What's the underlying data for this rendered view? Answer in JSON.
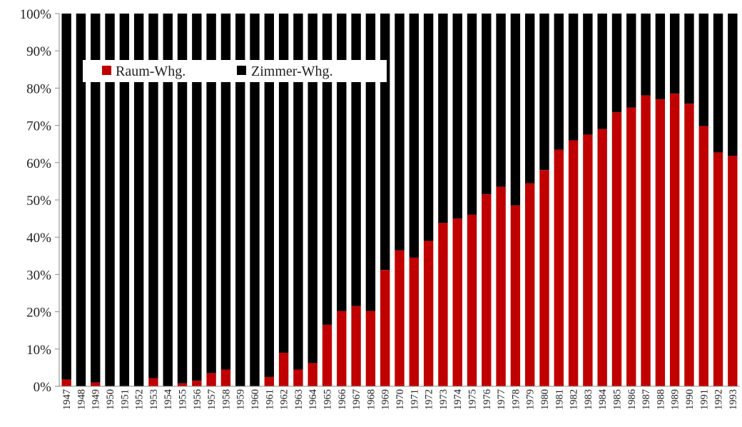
{
  "chart_data": {
    "type": "bar",
    "stacked": true,
    "percent_stacked": true,
    "categories": [
      "1947",
      "1948",
      "1949",
      "1950",
      "1951",
      "1952",
      "1953",
      "1954",
      "1955",
      "1956",
      "1957",
      "1958",
      "1959",
      "1960",
      "1961",
      "1962",
      "1963",
      "1964",
      "1965",
      "1966",
      "1967",
      "1968",
      "1969",
      "1970",
      "1971",
      "1972",
      "1973",
      "1974",
      "1975",
      "1976",
      "1977",
      "1978",
      "1979",
      "1980",
      "1981",
      "1982",
      "1983",
      "1984",
      "1985",
      "1986",
      "1987",
      "1988",
      "1989",
      "1990",
      "1991",
      "1992",
      "1993"
    ],
    "series": [
      {
        "name": "Raum-Whg.",
        "color": "#c00000",
        "values": [
          1.8,
          0,
          1,
          0,
          0,
          0,
          2.2,
          0,
          0.8,
          1.5,
          3.5,
          4.5,
          0,
          0,
          2.5,
          9,
          4.5,
          6.2,
          16.5,
          20.2,
          21.5,
          20.2,
          31.2,
          36.5,
          34.5,
          39,
          43.8,
          45,
          46,
          51.5,
          53.5,
          48.5,
          54.5,
          58,
          63.5,
          66,
          67.5,
          69,
          73.5,
          74.8,
          78,
          77,
          78.5,
          75.8,
          69.8,
          62.7,
          61.8
        ]
      },
      {
        "name": "Zimmer-Whg.",
        "color": "#000000",
        "values": [
          98.2,
          100,
          99,
          100,
          100,
          100,
          97.8,
          100,
          99.2,
          98.5,
          96.5,
          95.5,
          100,
          100,
          97.5,
          91,
          95.5,
          93.8,
          83.5,
          79.8,
          78.5,
          79.8,
          68.8,
          63.5,
          65.5,
          61,
          56.2,
          55,
          54,
          48.5,
          46.5,
          51.5,
          45.5,
          42,
          36.5,
          34,
          32.5,
          31,
          26.5,
          25.2,
          22,
          23,
          21.5,
          24.2,
          30.2,
          37.3,
          38.2
        ]
      }
    ],
    "y_tick_labels": [
      "0%",
      "10%",
      "20%",
      "30%",
      "40%",
      "50%",
      "60%",
      "70%",
      "80%",
      "90%",
      "100%"
    ],
    "ylim": [
      0,
      100
    ],
    "legend_position": "top-left",
    "grid": false
  }
}
